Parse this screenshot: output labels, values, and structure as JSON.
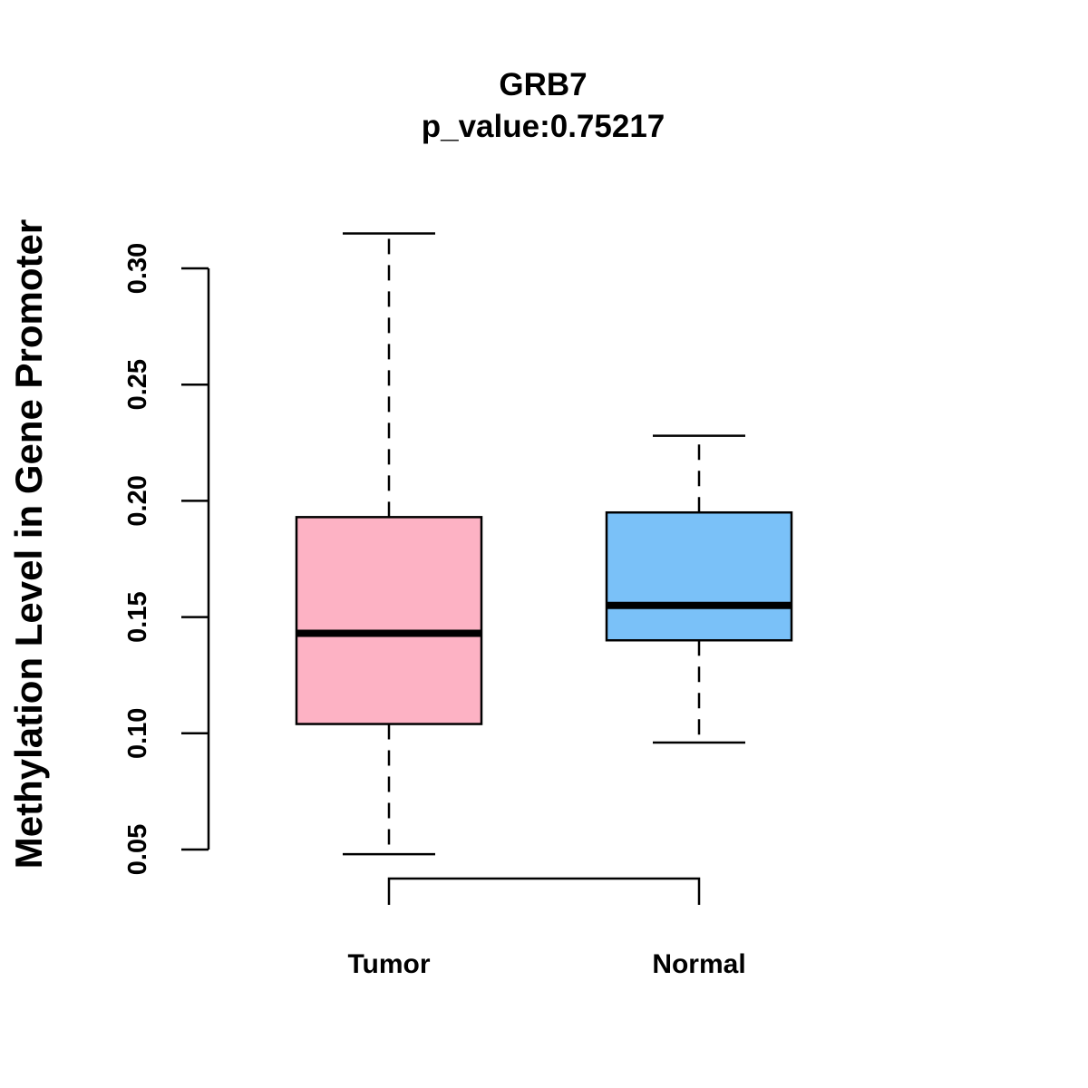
{
  "chart_data": {
    "type": "boxplot",
    "title": "GRB7",
    "subtitle": "p_value:0.75217",
    "xlabel": "",
    "ylabel": "Methylation Level in Gene Promoter",
    "ylim": [
      0.05,
      0.3
    ],
    "y_ticks": [
      "0.05",
      "0.10",
      "0.15",
      "0.20",
      "0.25",
      "0.30"
    ],
    "categories": [
      "Tumor",
      "Normal"
    ],
    "series": [
      {
        "name": "Tumor",
        "whisker_low": 0.048,
        "q1": 0.104,
        "median": 0.143,
        "q3": 0.193,
        "whisker_high": 0.315,
        "color": "#FDB2C4"
      },
      {
        "name": "Normal",
        "whisker_low": 0.096,
        "q1": 0.14,
        "median": 0.155,
        "q3": 0.195,
        "whisker_high": 0.228,
        "color": "#7AC1F8"
      }
    ],
    "comparison_bracket": [
      "Tumor",
      "Normal"
    ],
    "grid": false,
    "legend": "none"
  }
}
